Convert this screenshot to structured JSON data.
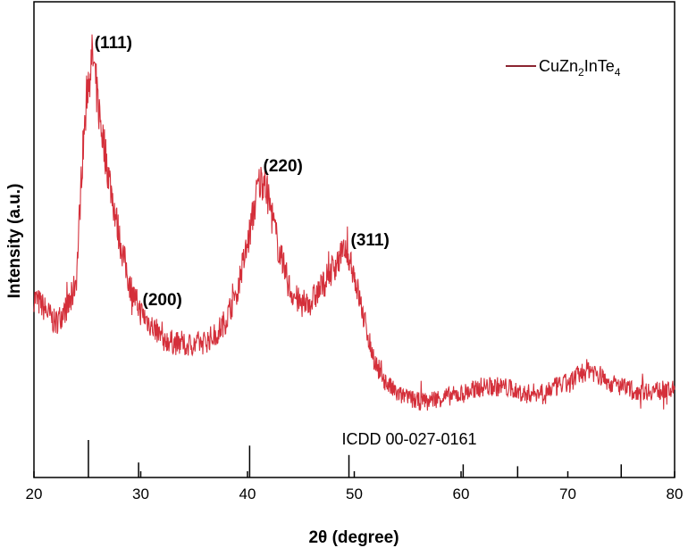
{
  "chart_data": {
    "type": "line",
    "xlabel": "2θ (degree)",
    "ylabel": "Intensity (a.u.)",
    "xlim": [
      20,
      80
    ],
    "ylim": [
      0,
      100
    ],
    "x_ticks": [
      20,
      30,
      40,
      50,
      60,
      70,
      80
    ],
    "y_ticks_visible": false,
    "grid": false,
    "legend_position": "top-right",
    "series": [
      {
        "name": "CuZn2InTe4",
        "color": "#d42f3a",
        "x": [
          20,
          21,
          22,
          23,
          23.5,
          24,
          24.5,
          25,
          25.5,
          26,
          26.5,
          27,
          28,
          29,
          30,
          32,
          34,
          36,
          37,
          38,
          39,
          40,
          41,
          41.5,
          42,
          43,
          44,
          45,
          46,
          47,
          48,
          49,
          49.5,
          50,
          51,
          52,
          53,
          54,
          56,
          58,
          60,
          62,
          64,
          66,
          68,
          70,
          72,
          74,
          76,
          78,
          80
        ],
        "y": [
          34,
          31,
          27,
          31,
          33,
          40,
          70,
          91,
          99,
          86,
          76,
          67,
          50,
          37,
          30,
          23,
          21,
          22,
          24,
          28,
          36,
          48,
          64,
          66,
          60,
          46,
          36,
          32,
          33,
          37,
          42,
          46,
          46,
          40,
          27,
          16,
          11,
          8,
          6,
          7,
          8,
          10,
          10,
          8,
          9,
          11,
          15,
          11,
          9,
          9,
          9
        ]
      }
    ],
    "peak_labels": [
      {
        "text": "(111)",
        "x": 25.5,
        "y": 99
      },
      {
        "text": "(200)",
        "x": 30,
        "y": 30
      },
      {
        "text": "(220)",
        "x": 41.3,
        "y": 66
      },
      {
        "text": "(311)",
        "x": 49.5,
        "y": 46
      }
    ],
    "reference": {
      "label": "ICDD 00-027-0161",
      "lines": [
        {
          "x": 25.1,
          "h": 1.0
        },
        {
          "x": 29.8,
          "h": 0.4
        },
        {
          "x": 40.2,
          "h": 0.85
        },
        {
          "x": 49.5,
          "h": 0.6
        },
        {
          "x": 60.2,
          "h": 0.35
        },
        {
          "x": 65.3,
          "h": 0.3
        },
        {
          "x": 75.0,
          "h": 0.35
        }
      ]
    },
    "legend": {
      "prefix": "CuZn",
      "sub1": "2",
      "middle": "InTe",
      "sub2": "4"
    }
  }
}
